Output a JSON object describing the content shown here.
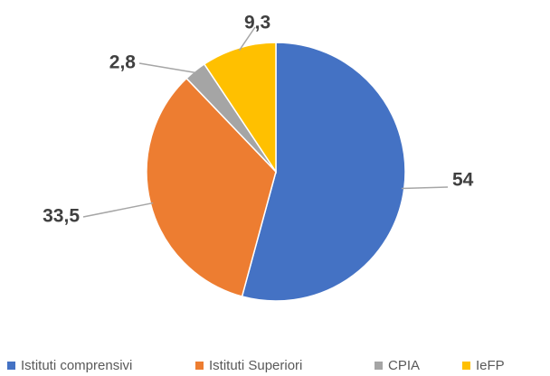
{
  "chart_data": {
    "type": "pie",
    "categories": [
      "Istituti comprensivi",
      "Istituti Superiori",
      "CPIA",
      "IeFP"
    ],
    "values": [
      54,
      33.5,
      2.8,
      9.3
    ],
    "value_labels": [
      "54",
      "33,5",
      "2,8",
      "9,3"
    ],
    "colors": [
      "#4472c4",
      "#ed7d31",
      "#a5a5a5",
      "#ffc000"
    ],
    "legend": "bottom"
  }
}
